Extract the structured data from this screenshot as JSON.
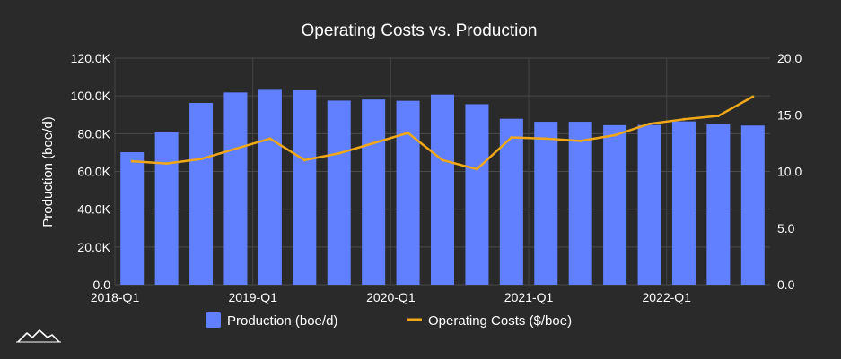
{
  "chart_data": {
    "type": "bar+line",
    "title": "Operating Costs vs. Production",
    "categories": [
      "2018-Q1",
      "2018-Q2",
      "2018-Q3",
      "2018-Q4",
      "2019-Q1",
      "2019-Q2",
      "2019-Q3",
      "2019-Q4",
      "2020-Q1",
      "2020-Q2",
      "2020-Q3",
      "2020-Q4",
      "2021-Q1",
      "2021-Q2",
      "2021-Q3",
      "2021-Q4",
      "2022-Q1",
      "2022-Q2",
      "2022-Q3"
    ],
    "x_tick_labels": [
      "2018-Q1",
      "2019-Q1",
      "2020-Q1",
      "2021-Q1",
      "2022-Q1"
    ],
    "series": [
      {
        "name": "Production (boe/d)",
        "type": "bar",
        "axis": "left",
        "color": "#6080ff",
        "values": [
          70200,
          80700,
          96300,
          101800,
          103700,
          103200,
          97500,
          98100,
          97400,
          100700,
          95600,
          87900,
          86300,
          86300,
          84500,
          84600,
          86500,
          85000,
          84300
        ]
      },
      {
        "name": "Operating Costs ($/boe)",
        "type": "line",
        "axis": "right",
        "color": "#f0a818",
        "values": [
          10.9,
          10.7,
          11.1,
          12.0,
          12.9,
          11.0,
          11.6,
          12.5,
          13.4,
          11.0,
          10.2,
          13.0,
          12.9,
          12.7,
          13.2,
          14.2,
          14.6,
          14.9,
          16.6
        ]
      }
    ],
    "y_left": {
      "label": "Production (boe/d)",
      "range": [
        0,
        120000
      ],
      "ticks": [
        "0.0",
        "20.0K",
        "40.0K",
        "60.0K",
        "80.0K",
        "100.0K",
        "120.0K"
      ]
    },
    "y_right": {
      "label": "",
      "range": [
        0,
        20
      ],
      "ticks": [
        "0.0",
        "5.0",
        "10.0",
        "15.0",
        "20.0"
      ]
    },
    "legend": {
      "position": "bottom",
      "items": [
        "Production (boe/d)",
        "Operating Costs ($/boe)"
      ]
    },
    "grid": true
  }
}
